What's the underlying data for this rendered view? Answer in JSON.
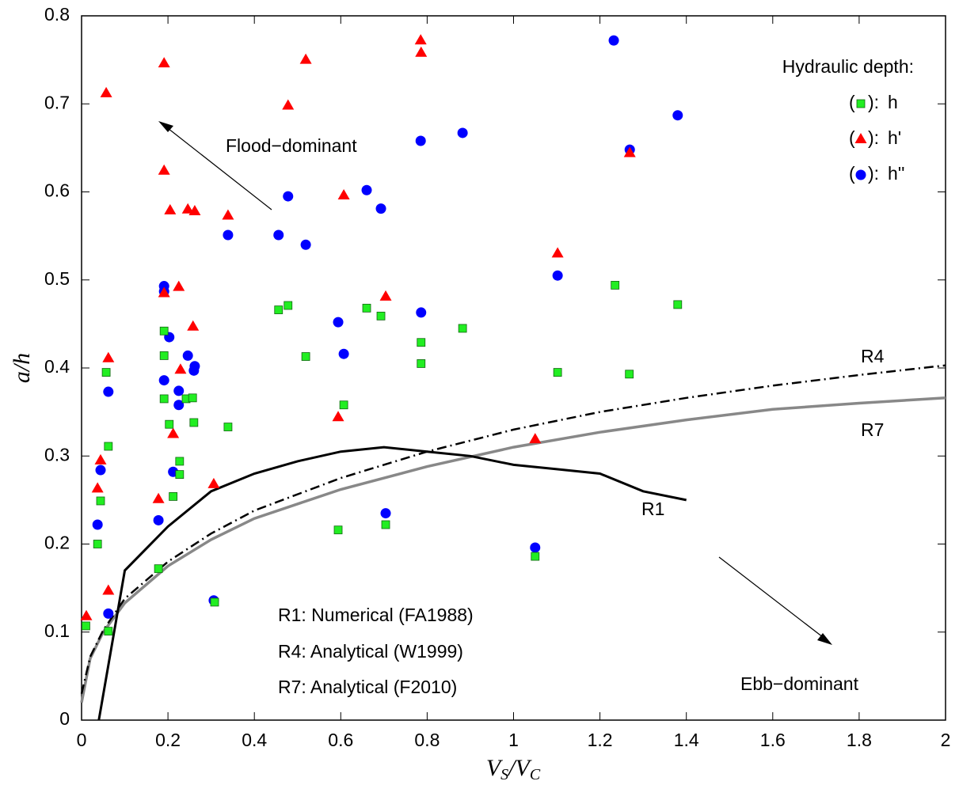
{
  "chart_data": {
    "type": "scatter",
    "xlabel": [
      "V",
      "S",
      "/V",
      "C"
    ],
    "ylabel": "a/h",
    "xlim": [
      0,
      2
    ],
    "ylim": [
      0,
      0.8
    ],
    "xticks": [
      0,
      0.2,
      0.4,
      0.6,
      0.8,
      1,
      1.2,
      1.4,
      1.6,
      1.8,
      2
    ],
    "yticks": [
      0,
      0.1,
      0.2,
      0.3,
      0.4,
      0.5,
      0.6,
      0.7,
      0.8
    ],
    "grid": false,
    "legend_title": "Hydraulic depth:",
    "legend_open": "(",
    "legend_close": "):",
    "series": [
      {
        "name": "h''",
        "color": "#0000ff",
        "marker": "circle",
        "x": [
          0.037,
          0.044,
          0.062,
          0.062,
          0.178,
          0.191,
          0.191,
          0.191,
          0.203,
          0.212,
          0.225,
          0.225,
          0.246,
          0.26,
          0.262,
          0.306,
          0.339,
          0.456,
          0.478,
          0.519,
          0.594,
          0.607,
          0.66,
          0.693,
          0.704,
          0.785,
          0.786,
          0.882,
          1.05,
          1.102,
          1.232,
          1.269,
          1.38
        ],
        "values": [
          0.222,
          0.284,
          0.373,
          0.121,
          0.227,
          0.493,
          0.487,
          0.386,
          0.435,
          0.282,
          0.374,
          0.358,
          0.414,
          0.397,
          0.402,
          0.136,
          0.551,
          0.551,
          0.595,
          0.54,
          0.452,
          0.416,
          0.602,
          0.581,
          0.235,
          0.658,
          0.463,
          0.667,
          0.196,
          0.505,
          0.772,
          0.648,
          0.687
        ]
      },
      {
        "name": "h'",
        "color": "#ff0000",
        "marker": "triangle",
        "x": [
          0.011,
          0.037,
          0.044,
          0.057,
          0.062,
          0.062,
          0.178,
          0.191,
          0.191,
          0.191,
          0.205,
          0.212,
          0.225,
          0.229,
          0.246,
          0.262,
          0.258,
          0.306,
          0.339,
          0.478,
          0.519,
          0.594,
          0.607,
          0.704,
          0.785,
          0.786,
          1.05,
          1.102,
          1.269
        ],
        "values": [
          0.118,
          0.263,
          0.295,
          0.712,
          0.411,
          0.147,
          0.251,
          0.746,
          0.624,
          0.485,
          0.579,
          0.325,
          0.492,
          0.398,
          0.58,
          0.578,
          0.447,
          0.268,
          0.573,
          0.698,
          0.75,
          0.344,
          0.596,
          0.481,
          0.772,
          0.758,
          0.319,
          0.53,
          0.644
        ]
      },
      {
        "name": "h",
        "color": "#22ee22",
        "marker": "square",
        "x": [
          0.01,
          0.037,
          0.044,
          0.057,
          0.062,
          0.062,
          0.178,
          0.191,
          0.191,
          0.191,
          0.203,
          0.212,
          0.227,
          0.227,
          0.242,
          0.257,
          0.26,
          0.308,
          0.339,
          0.456,
          0.478,
          0.519,
          0.594,
          0.607,
          0.66,
          0.693,
          0.704,
          0.786,
          0.786,
          0.882,
          1.05,
          1.102,
          1.235,
          1.268,
          1.38
        ],
        "values": [
          0.107,
          0.2,
          0.249,
          0.395,
          0.311,
          0.101,
          0.172,
          0.442,
          0.414,
          0.365,
          0.336,
          0.254,
          0.294,
          0.279,
          0.365,
          0.366,
          0.338,
          0.134,
          0.333,
          0.466,
          0.471,
          0.413,
          0.216,
          0.358,
          0.468,
          0.459,
          0.222,
          0.405,
          0.429,
          0.445,
          0.186,
          0.395,
          0.494,
          0.393,
          0.472
        ]
      }
    ],
    "lines": [
      {
        "name": "R7",
        "color": "#888888",
        "dash": "none",
        "width": 3.5,
        "x": [
          0,
          0.02,
          0.05,
          0.1,
          0.2,
          0.3,
          0.4,
          0.6,
          0.8,
          1.0,
          1.2,
          1.4,
          1.6,
          1.8,
          2.0
        ],
        "values": [
          0.02,
          0.07,
          0.1,
          0.133,
          0.175,
          0.205,
          0.229,
          0.262,
          0.288,
          0.31,
          0.327,
          0.341,
          0.353,
          0.36,
          0.366
        ]
      },
      {
        "name": "R4",
        "color": "#000000",
        "dash": "12 5 2 5",
        "width": 2.5,
        "x": [
          0,
          0.02,
          0.05,
          0.1,
          0.2,
          0.3,
          0.4,
          0.6,
          0.8,
          1.0,
          1.2,
          1.4,
          1.6,
          1.8,
          2.0
        ],
        "values": [
          0.03,
          0.072,
          0.102,
          0.138,
          0.18,
          0.212,
          0.238,
          0.275,
          0.305,
          0.33,
          0.35,
          0.366,
          0.38,
          0.392,
          0.403
        ]
      },
      {
        "name": "R1",
        "color": "#000000",
        "dash": "none",
        "width": 3,
        "x": [
          0.04,
          0.1,
          0.2,
          0.3,
          0.4,
          0.5,
          0.6,
          0.7,
          0.8,
          0.9,
          1.0,
          1.1,
          1.2,
          1.3,
          1.4
        ],
        "values": [
          0,
          0.17,
          0.22,
          0.26,
          0.28,
          0.294,
          0.305,
          0.31,
          0.305,
          0.3,
          0.29,
          0.285,
          0.28,
          0.26,
          0.25
        ]
      }
    ],
    "annotations": [
      "Flood−dominant",
      "Ebb−dominant"
    ],
    "notes": [
      "R1: Numerical (FA1988)",
      "R4: Analytical (W1999)",
      "R7: Analytical (F2010)"
    ]
  }
}
